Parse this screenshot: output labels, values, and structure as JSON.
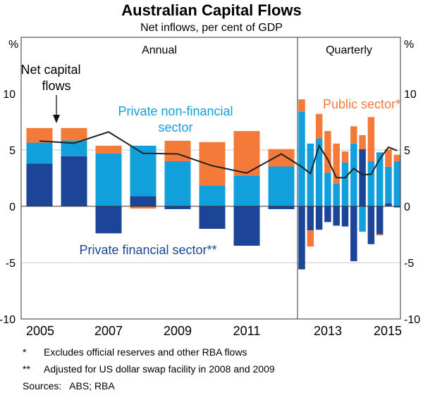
{
  "chart_data": {
    "type": "bar",
    "title": "Australian Capital Flows",
    "subtitle": "Net inflows, per cent of GDP",
    "ylabel_left": "%",
    "ylabel_right": "%",
    "ylim": [
      -10,
      10
    ],
    "yticks": [
      -10,
      -5,
      0,
      5,
      10
    ],
    "panels": [
      "Annual",
      "Quarterly"
    ],
    "xtick_labels": [
      "2005",
      "2007",
      "2009",
      "2011",
      "2013",
      "2015"
    ],
    "colors": {
      "financial": "#1c4597",
      "nonfinancial": "#12a0dc",
      "public": "#f47a3a",
      "line": "#222222"
    },
    "annual": {
      "categories": [
        "2005",
        "2006",
        "2007",
        "2008",
        "2009",
        "2010",
        "2011",
        "2012"
      ],
      "series": [
        {
          "name": "Private financial sector**",
          "values": [
            3.8,
            4.45,
            -2.4,
            0.9,
            -0.25,
            -2.0,
            -3.5,
            -0.25
          ]
        },
        {
          "name": "Private non-financial sector",
          "values": [
            1.85,
            1.4,
            4.7,
            4.48,
            4.0,
            1.85,
            2.73,
            3.53
          ]
        },
        {
          "name": "Public sector*",
          "values": [
            1.3,
            1.1,
            0.68,
            -0.2,
            1.82,
            3.85,
            3.95,
            1.55
          ]
        }
      ],
      "net_capital_flows": [
        5.8,
        5.6,
        6.6,
        4.7,
        4.65,
        3.6,
        2.95,
        4.65
      ]
    },
    "quarterly": {
      "categories": [
        "Q1",
        "Q2",
        "Q3",
        "Q4",
        "Q5",
        "Q6",
        "Q7",
        "Q8",
        "Q9",
        "Q10",
        "Q11",
        "Q12"
      ],
      "series": [
        {
          "name": "Private financial sector**",
          "values": [
            -5.6,
            -2.14,
            -2.08,
            -1.4,
            -1.72,
            -1.79,
            -4.87,
            5.06,
            -3.36,
            -2.48,
            0.27,
            -0.1
          ]
        },
        {
          "name": "Private non-financial sector",
          "values": [
            8.42,
            5.57,
            6.0,
            2.98,
            2.0,
            3.89,
            5.57,
            -2.25,
            4.0,
            4.79,
            3.24,
            3.97
          ]
        },
        {
          "name": "Public sector*",
          "values": [
            1.07,
            -1.43,
            2.2,
            3.7,
            3.57,
            0.98,
            1.53,
            1.26,
            3.92,
            -0.1,
            1.56,
            0.61
          ]
        }
      ],
      "net_capital_flows": [
        3.5,
        2.9,
        5.38,
        4.16,
        2.54,
        2.54,
        3.36,
        2.8,
        2.84,
        4.2,
        5.25,
        4.94
      ]
    },
    "annotations": {
      "net_line_1": "Net capital",
      "net_line_2": "flows",
      "nonfin_1": "Private non-financial",
      "nonfin_2": "sector",
      "public": "Public sector*",
      "financial": "Private financial sector**"
    }
  },
  "footnotes": [
    {
      "mark": "*",
      "text": "Excludes official reserves and other RBA flows"
    },
    {
      "mark": "**",
      "text": "Adjusted for US dollar swap facility in 2008 and 2009"
    }
  ],
  "sources": "Sources:   ABS; RBA"
}
